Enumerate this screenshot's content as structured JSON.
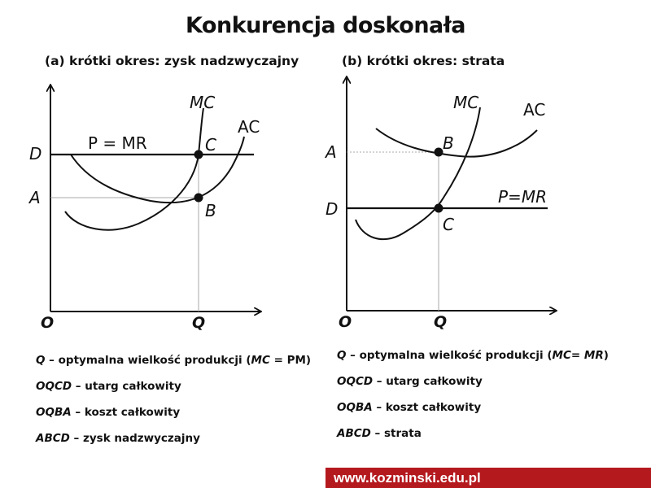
{
  "title": "Konkurencja doskonała",
  "panel_a": {
    "subtitle": "(a) krótki okres: zysk nadzwyczajny",
    "labels": {
      "MC": "MC",
      "AC": "AC",
      "PMR": "P = MR",
      "C": "C",
      "B": "B",
      "D": "D",
      "A": "A",
      "O": "O",
      "Q": "Q"
    },
    "notes": [
      {
        "key": "Q",
        "text": " – optymalna wielkość produkcji (",
        "key2": "MC",
        "tail": " = PM)"
      },
      {
        "key": "OQCD",
        "text": " – utarg całkowity"
      },
      {
        "key": "OQBA",
        "text": " – koszt całkowity"
      },
      {
        "key": "ABCD",
        "text": " – zysk nadzwyczajny"
      }
    ]
  },
  "panel_b": {
    "subtitle": "(b) krótki okres: strata",
    "labels": {
      "MC": "MC",
      "AC": "AC",
      "PMR": "P=MR",
      "B": "B",
      "C": "C",
      "A": "A",
      "D": "D",
      "O": "O",
      "Q": "Q"
    },
    "notes": [
      {
        "key": "Q",
        "text": " – optymalna wielkość produkcji (",
        "key2": "MC= MR",
        "tail": ")"
      },
      {
        "key": "OQCD",
        "text": " – utarg całkowity"
      },
      {
        "key": "OQBA",
        "text": " – koszt całkowity"
      },
      {
        "key": "ABCD",
        "text": " – strata"
      }
    ]
  },
  "footer": "www.kozminski.edu.pl"
}
